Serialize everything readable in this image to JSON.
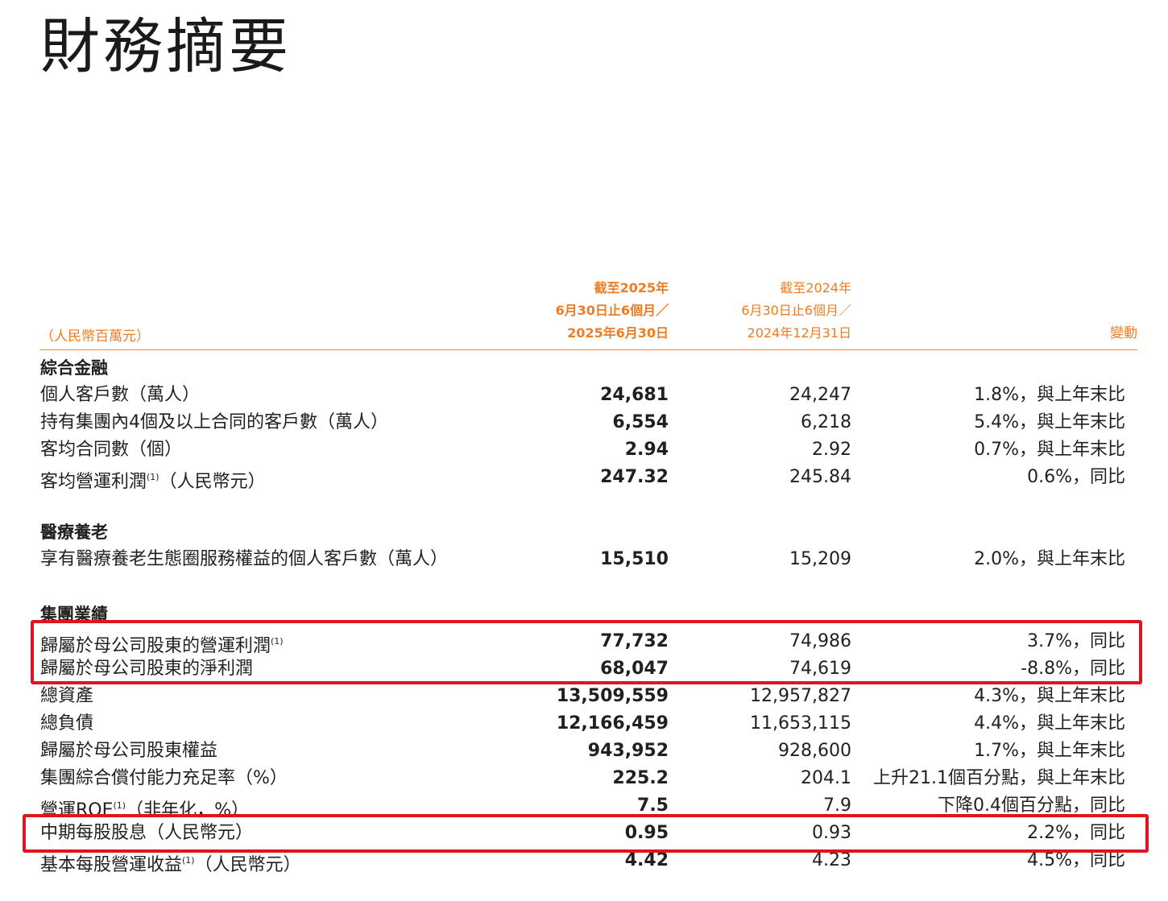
{
  "page_title": "財務摘要",
  "table_header": {
    "unit_note": "（人民幣百萬元）",
    "current_period": [
      "截至2025年",
      "6月30日止6個月／",
      "2025年6月30日"
    ],
    "previous_period": [
      "截至2024年",
      "6月30日止6個月／",
      "2024年12月31日"
    ],
    "change": "變動"
  },
  "sections": [
    {
      "title": "綜合金融",
      "rows": [
        {
          "label": "個人客戶數（萬人）",
          "note": "",
          "label_suffix": "",
          "current": "24,681",
          "previous": "24,247",
          "change": "1.8%，與上年末比"
        },
        {
          "label": "持有集團內4個及以上合同的客戶數（萬人）",
          "note": "",
          "label_suffix": "",
          "current": "6,554",
          "previous": "6,218",
          "change": "5.4%，與上年末比"
        },
        {
          "label": "客均合同數（個）",
          "note": "",
          "label_suffix": "",
          "current": "2.94",
          "previous": "2.92",
          "change": "0.7%，與上年末比"
        },
        {
          "label": "客均營運利潤",
          "note": "(1)",
          "label_suffix": "（人民幣元）",
          "current": "247.32",
          "previous": "245.84",
          "change": "0.6%，同比"
        }
      ]
    },
    {
      "title": "醫療養老",
      "rows": [
        {
          "label": "享有醫療養老生態圈服務權益的個人客戶數（萬人）",
          "note": "",
          "label_suffix": "",
          "current": "15,510",
          "previous": "15,209",
          "change": "2.0%，與上年末比"
        }
      ]
    },
    {
      "title": "集團業績",
      "rows": [
        {
          "label": "歸屬於母公司股東的營運利潤",
          "note": "(1)",
          "label_suffix": "",
          "current": "77,732",
          "previous": "74,986",
          "change": "3.7%，同比"
        },
        {
          "label": "歸屬於母公司股東的淨利潤",
          "note": "",
          "label_suffix": "",
          "current": "68,047",
          "previous": "74,619",
          "change": "-8.8%，同比"
        },
        {
          "label": "總資產",
          "note": "",
          "label_suffix": "",
          "current": "13,509,559",
          "previous": "12,957,827",
          "change": "4.3%，與上年末比"
        },
        {
          "label": "總負債",
          "note": "",
          "label_suffix": "",
          "current": "12,166,459",
          "previous": "11,653,115",
          "change": "4.4%，與上年末比"
        },
        {
          "label": "歸屬於母公司股東權益",
          "note": "",
          "label_suffix": "",
          "current": "943,952",
          "previous": "928,600",
          "change": "1.7%，與上年末比"
        },
        {
          "label": "集團綜合償付能力充足率（%）",
          "note": "",
          "label_suffix": "",
          "current": "225.2",
          "previous": "204.1",
          "change": "上升21.1個百分點，與上年末比"
        },
        {
          "label": "營運ROE",
          "note": "(1)",
          "label_suffix": "（非年化，%）",
          "current": "7.5",
          "previous": "7.9",
          "change": "下降0.4個百分點，同比"
        },
        {
          "label": "中期每股股息（人民幣元）",
          "note": "",
          "label_suffix": "",
          "current": "0.95",
          "previous": "0.93",
          "change": "2.2%，同比"
        },
        {
          "label": "基本每股營運收益",
          "note": "(1)",
          "label_suffix": "（人民幣元）",
          "current": "4.42",
          "previous": "4.23",
          "change": "4.5%，同比"
        }
      ]
    }
  ],
  "highlight_color": "#e0141e",
  "accent_color": "#ee7d21"
}
